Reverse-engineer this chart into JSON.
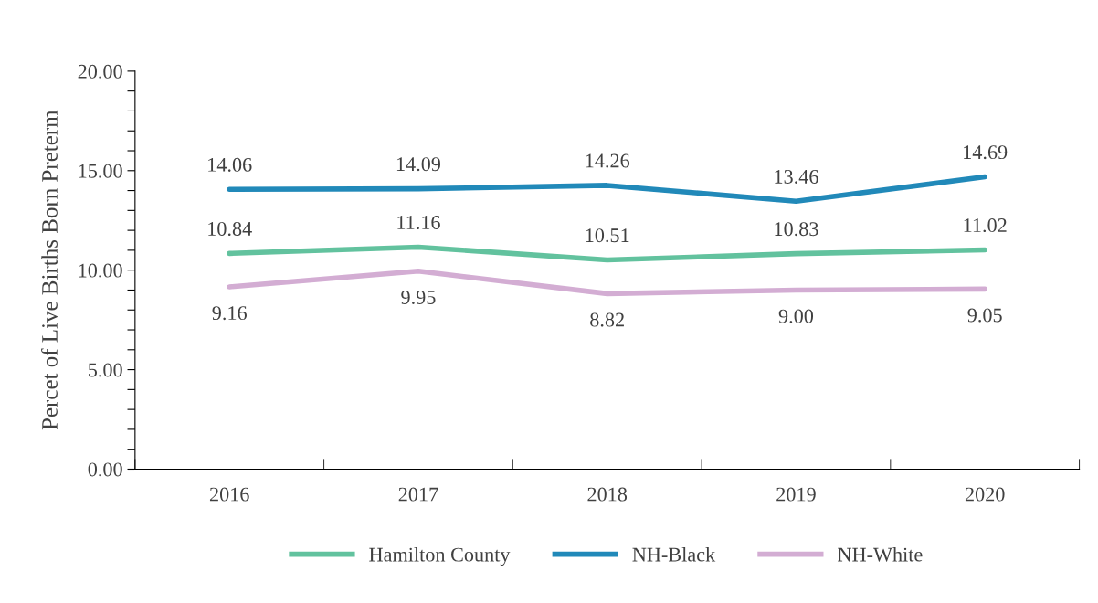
{
  "chart_data": {
    "type": "line",
    "ylabel": "Percet of Live Births Born Preterm",
    "categories": [
      "2016",
      "2017",
      "2018",
      "2019",
      "2020"
    ],
    "series": [
      {
        "name": "Hamilton County",
        "color": "#62c29e",
        "values": [
          10.84,
          11.16,
          10.51,
          10.83,
          11.02
        ],
        "value_labels": [
          "10.84",
          "11.16",
          "10.51",
          "10.83",
          "11.02"
        ]
      },
      {
        "name": "NH-Black",
        "color": "#2189b9",
        "values": [
          14.06,
          14.09,
          14.26,
          13.46,
          14.69
        ],
        "value_labels": [
          "14.06",
          "14.09",
          "14.26",
          "13.46",
          "14.69"
        ]
      },
      {
        "name": "NH-White",
        "color": "#d3add3",
        "values": [
          9.16,
          9.95,
          8.82,
          9.0,
          9.05
        ],
        "value_labels": [
          "9.16",
          "9.95",
          "8.82",
          "9.00",
          "9.05"
        ]
      }
    ],
    "ylim": [
      0,
      20
    ],
    "yticks": [
      {
        "value": 0,
        "label": "0.00"
      },
      {
        "value": 1,
        "label": null
      },
      {
        "value": 2,
        "label": null
      },
      {
        "value": 3,
        "label": null
      },
      {
        "value": 4,
        "label": null
      },
      {
        "value": 5,
        "label": "5.00"
      },
      {
        "value": 6,
        "label": null
      },
      {
        "value": 7,
        "label": null
      },
      {
        "value": 8,
        "label": null
      },
      {
        "value": 9,
        "label": null
      },
      {
        "value": 10,
        "label": "10.00"
      },
      {
        "value": 11,
        "label": null
      },
      {
        "value": 12,
        "label": null
      },
      {
        "value": 13,
        "label": null
      },
      {
        "value": 14,
        "label": null
      },
      {
        "value": 15,
        "label": "15.00"
      },
      {
        "value": 16,
        "label": null
      },
      {
        "value": 17,
        "label": null
      },
      {
        "value": 18,
        "label": null
      },
      {
        "value": 19,
        "label": null
      },
      {
        "value": 20,
        "label": "20.00"
      }
    ],
    "grid": false,
    "legend": "bottom",
    "marker": "none",
    "line_style": "solid"
  }
}
